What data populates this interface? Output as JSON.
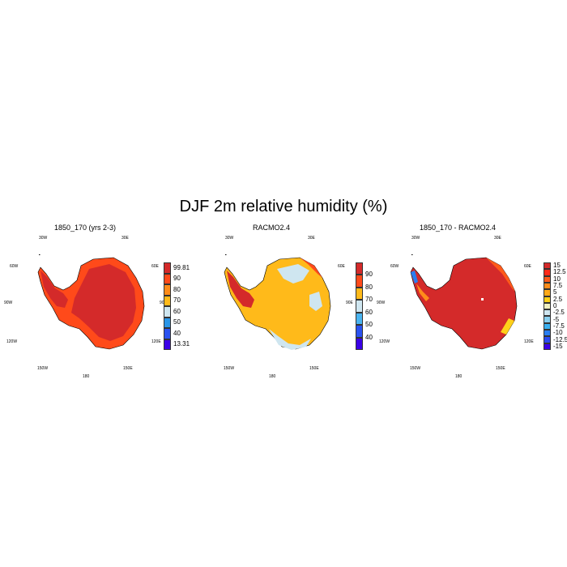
{
  "title": "DJF 2m relative humidity (%)",
  "lon_labels": {
    "w30": "30W",
    "e30": "30E",
    "w60": "60W",
    "e60": "60E",
    "w90": "90W",
    "e90": "90E",
    "w120": "120W",
    "e120": "120E",
    "w150": "150W",
    "e150": "150E",
    "s180": "180"
  },
  "panels": [
    {
      "title": "1850_170 (yrs 2-3)",
      "colorbar": {
        "labels": [
          "99.81",
          "90",
          "80",
          "70",
          "60",
          "50",
          "40",
          "13.31"
        ],
        "colors": [
          "#d42a2a",
          "#ff4a1a",
          "#ff8c1a",
          "#ffba1a",
          "#cfe6f0",
          "#2a96e8",
          "#2a52f0",
          "#3a00e6"
        ]
      }
    },
    {
      "title": "RACMO2.4",
      "colorbar": {
        "labels": [
          "90",
          "80",
          "70",
          "60",
          "50",
          "40"
        ],
        "colors": [
          "#d42a2a",
          "#ff4a1a",
          "#ffba1a",
          "#cfe6f0",
          "#4ab4f0",
          "#2a52f0",
          "#3a00e6"
        ]
      }
    },
    {
      "title": "1850_170 - RACMO2.4",
      "colorbar": {
        "labels": [
          "15",
          "12.5",
          "10",
          "7.5",
          "5",
          "2.5",
          "0",
          "-2.5",
          "-5",
          "-7.5",
          "-10",
          "-12.5",
          "-15"
        ],
        "colors": [
          "#d42a2a",
          "#ff2a1a",
          "#ff5a1a",
          "#ff8c1a",
          "#ffaa1a",
          "#ffd01a",
          "#f0f0c0",
          "#cfe6f0",
          "#8ad0f0",
          "#3ab0f0",
          "#2a7ef0",
          "#2a4af0",
          "#3a00e6"
        ]
      }
    }
  ]
}
